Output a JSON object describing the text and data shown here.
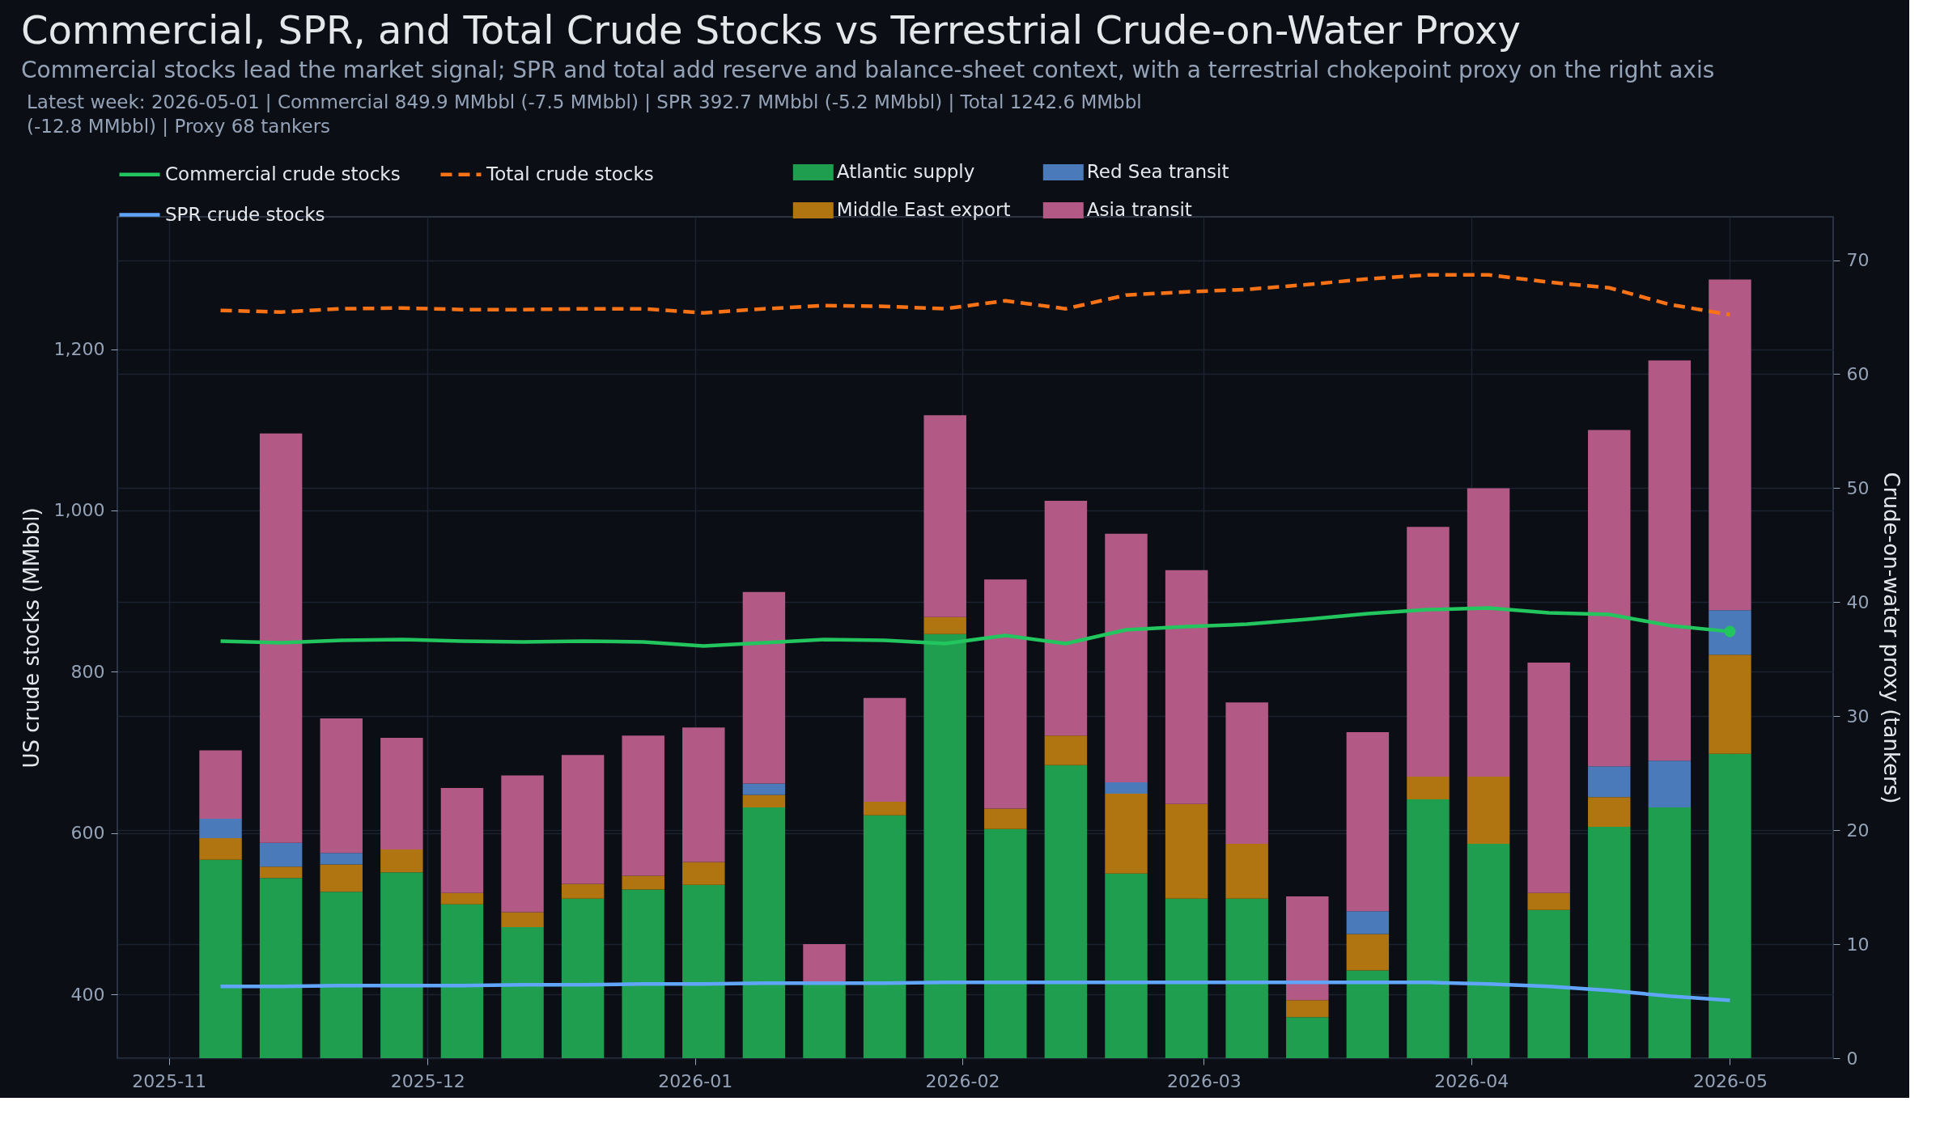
{
  "chart_data": {
    "type": "bar",
    "title": "Commercial, SPR, and Total Crude Stocks vs Terrestrial Crude-on-Water Proxy",
    "subtitle": "Commercial stocks lead the market signal; SPR and total add reserve and balance-sheet context, with a terrestrial chokepoint proxy on the right axis",
    "annotations": [
      "Latest week: 2026-05-01  |  Commercial 849.9 MMbbl (-7.5 MMbbl)  |  SPR 392.7 MMbbl (-5.2 MMbbl)  |  Total 1242.6 MMbbl (-12.8 MMbbl)  |  Proxy 68 tankers"
    ],
    "ylabel": "US crude stocks (MMbbl)",
    "y2label": "Crude-on-water proxy (tankers)",
    "x": [
      "2025-11-07",
      "2025-11-14",
      "2025-11-21",
      "2025-11-28",
      "2025-12-05",
      "2025-12-12",
      "2025-12-19",
      "2025-12-26",
      "2026-01-02",
      "2026-01-09",
      "2026-01-16",
      "2026-01-23",
      "2026-01-30",
      "2026-02-06",
      "2026-02-13",
      "2026-02-20",
      "2026-02-27",
      "2026-03-06",
      "2026-03-13",
      "2026-03-20",
      "2026-03-27",
      "2026-04-03",
      "2026-04-10",
      "2026-04-17",
      "2026-04-24",
      "2026-05-01"
    ],
    "xlim": [
      "2025-10-26T12:00",
      "2026-05-12T12:00"
    ],
    "xticks": [
      "2025-11",
      "2025-12",
      "2026-01",
      "2026-02",
      "2026-03",
      "2026-04",
      "2026-05"
    ],
    "ylim": [
      321,
      1364
    ],
    "yticks": [
      400,
      600,
      800,
      {
        "value": 1000,
        "label": "1,000"
      },
      {
        "value": 1200,
        "label": "1,200"
      }
    ],
    "y2lim": [
      0,
      73.8
    ],
    "y2ticks": [
      0,
      10,
      20,
      30,
      40,
      50,
      60,
      70
    ],
    "stacked": true,
    "grid": true,
    "legend": "top",
    "series": [
      {
        "name": "Commercial crude stocks",
        "type": "line",
        "axis": "y",
        "color": "#22c55e",
        "line_style": "solid",
        "values": [
          838,
          836,
          839,
          840,
          838,
          837,
          838,
          837,
          832,
          836,
          840,
          839,
          835,
          845,
          835,
          852,
          856,
          859,
          865,
          872,
          877,
          879,
          873,
          871,
          857.4,
          849.9
        ]
      },
      {
        "name": "SPR crude stocks",
        "type": "line",
        "axis": "y",
        "color": "#60a5fa",
        "line_style": "solid",
        "values": [
          410,
          410,
          411,
          411,
          411,
          412,
          412,
          413,
          413,
          414,
          414,
          414,
          415,
          415,
          415,
          415,
          415,
          415,
          415,
          415,
          415,
          413,
          410,
          405,
          397.9,
          392.7
        ]
      },
      {
        "name": "Total crude stocks",
        "type": "line",
        "axis": "y",
        "color": "#f97316",
        "line_style": "dashed",
        "values": [
          1248,
          1246,
          1250,
          1251,
          1249,
          1249,
          1250,
          1250,
          1245,
          1250,
          1254,
          1253,
          1250,
          1260,
          1250,
          1267,
          1271,
          1274,
          1280,
          1287,
          1292,
          1292,
          1283,
          1276,
          1255.4,
          1242.6
        ]
      },
      {
        "type": "scatter",
        "axis": "y",
        "color": "#22c55e",
        "marker": "circle",
        "x": [
          "2026-05-01"
        ],
        "values": [
          849.9
        ]
      },
      {
        "name": "Atlantic supply",
        "axis": "y2",
        "color": "#1f9e4f",
        "values": [
          17.4,
          15.8,
          14.6,
          16.3,
          13.5,
          11.5,
          14.0,
          14.8,
          15.2,
          22.0,
          6.5,
          21.3,
          37.2,
          20.1,
          25.7,
          16.2,
          14.0,
          14.0,
          3.6,
          7.7,
          22.7,
          18.8,
          13.0,
          20.3,
          22.0,
          26.7
        ]
      },
      {
        "name": "Middle East export",
        "axis": "y2",
        "color": "#b07510",
        "values": [
          1.9,
          1.0,
          2.4,
          2.0,
          1.0,
          1.3,
          1.3,
          1.2,
          2.0,
          1.1,
          null,
          1.2,
          1.5,
          1.8,
          2.6,
          7.0,
          8.3,
          4.8,
          1.5,
          3.2,
          2.0,
          5.9,
          1.5,
          2.6,
          null,
          8.7
        ]
      },
      {
        "name": "Red Sea transit",
        "axis": "y2",
        "color": "#4a7aba",
        "values": [
          1.7,
          2.1,
          1.0,
          null,
          null,
          null,
          null,
          null,
          null,
          1.0,
          null,
          null,
          null,
          null,
          null,
          1.0,
          null,
          null,
          null,
          2.0,
          null,
          null,
          null,
          2.7,
          4.1,
          3.9
        ]
      },
      {
        "name": "Asia transit",
        "axis": "y2",
        "color": "#b35985",
        "values": [
          6.0,
          35.9,
          11.8,
          9.8,
          9.2,
          12.0,
          11.3,
          12.3,
          11.8,
          16.8,
          3.5,
          9.1,
          17.7,
          20.1,
          20.6,
          21.8,
          20.5,
          12.4,
          9.1,
          15.7,
          21.9,
          25.3,
          20.2,
          29.5,
          35.1,
          29.0
        ]
      }
    ]
  }
}
